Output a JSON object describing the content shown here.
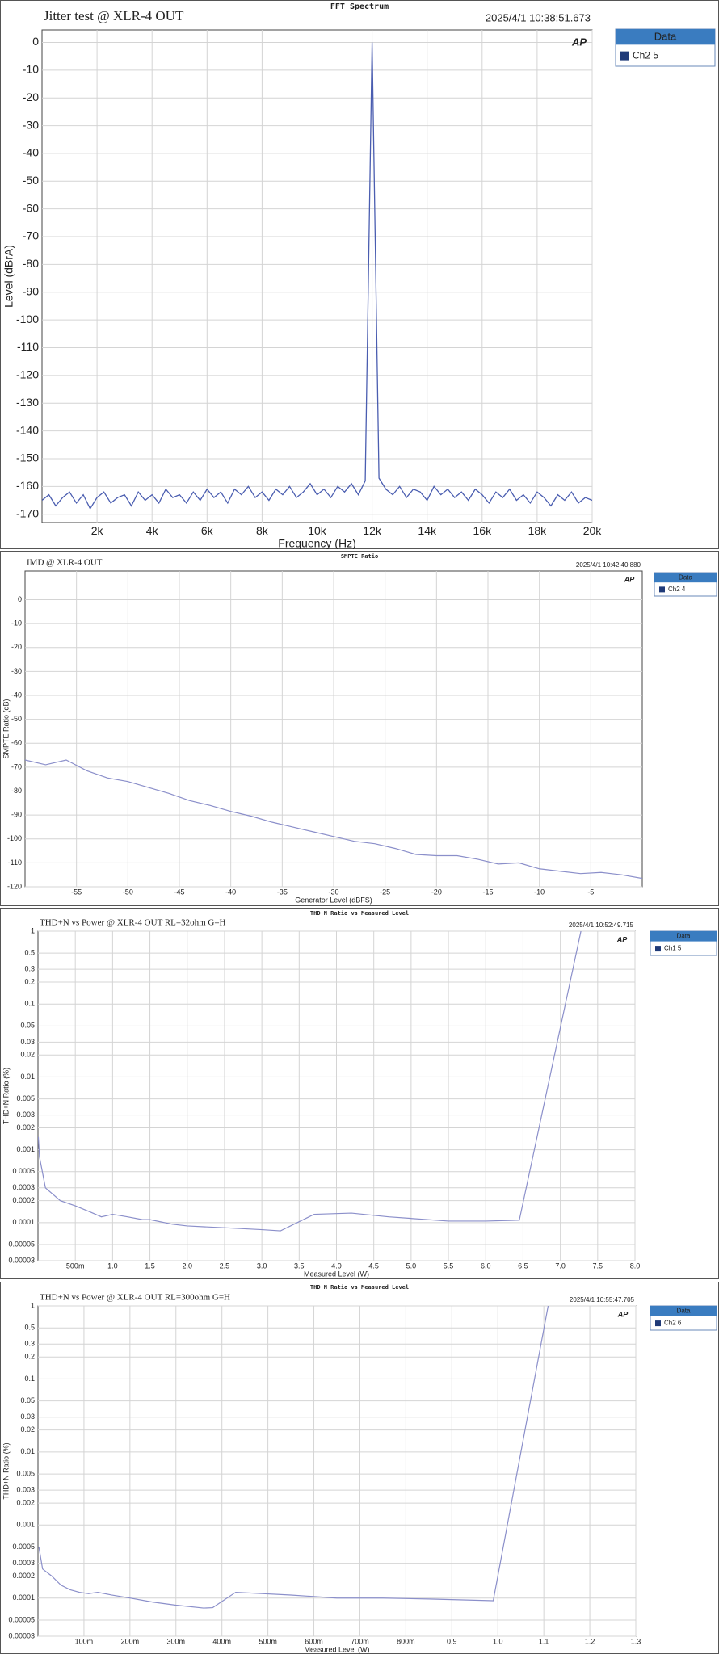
{
  "chart_data": [
    {
      "type": "line",
      "title": "FFT Spectrum",
      "annotation": "Jitter test @ XLR-4  OUT",
      "timestamp": "2025/4/1 10:38:51.673",
      "xlabel": "Frequency (Hz)",
      "ylabel": "Level (dBrA)",
      "legend_title": "Data",
      "grid": true,
      "legend": "right",
      "xlim": [
        0,
        20000
      ],
      "ylim": [
        -173,
        4.5
      ],
      "xticks": [
        {
          "value": 2000,
          "label": "2k"
        },
        {
          "value": 4000,
          "label": "4k"
        },
        {
          "value": 6000,
          "label": "6k"
        },
        {
          "value": 8000,
          "label": "8k"
        },
        {
          "value": 10000,
          "label": "10k"
        },
        {
          "value": 12000,
          "label": "12k"
        },
        {
          "value": 14000,
          "label": "14k"
        },
        {
          "value": 16000,
          "label": "16k"
        },
        {
          "value": 18000,
          "label": "18k"
        },
        {
          "value": 20000,
          "label": "20k"
        }
      ],
      "yticks": [
        0,
        -10,
        -20,
        -30,
        -40,
        -50,
        -60,
        -70,
        -80,
        -90,
        -100,
        -110,
        -120,
        -130,
        -140,
        -150,
        -160,
        -170
      ],
      "x": [
        0,
        250,
        500,
        750,
        1000,
        1250,
        1500,
        1750,
        2000,
        2250,
        2500,
        2750,
        3000,
        3250,
        3500,
        3750,
        4000,
        4250,
        4500,
        4750,
        5000,
        5250,
        5500,
        5750,
        6000,
        6250,
        6500,
        6750,
        7000,
        7250,
        7500,
        7750,
        8000,
        8250,
        8500,
        8750,
        9000,
        9250,
        9500,
        9750,
        10000,
        10250,
        10500,
        10750,
        11000,
        11250,
        11500,
        11750,
        12000,
        12250,
        12500,
        12750,
        13000,
        13250,
        13500,
        13750,
        14000,
        14250,
        14500,
        14750,
        15000,
        15250,
        15500,
        15750,
        16000,
        16250,
        16500,
        16750,
        17000,
        17250,
        17500,
        17750,
        18000,
        18250,
        18500,
        18750,
        19000,
        19250,
        19500,
        19750,
        20000
      ],
      "series": [
        {
          "name": "Ch2 5",
          "color": "#4a5db0",
          "values": [
            -165,
            -163,
            -167,
            -164,
            -162,
            -166,
            -163,
            -168,
            -164,
            -162,
            -166,
            -164,
            -163,
            -167,
            -162,
            -165,
            -163,
            -166,
            -161,
            -164,
            -163,
            -166,
            -162,
            -165,
            -161,
            -164,
            -162,
            -166,
            -161,
            -163,
            -160,
            -164,
            -162,
            -165,
            -161,
            -163,
            -160,
            -164,
            -162,
            -159,
            -163,
            -161,
            -164,
            -160,
            -162,
            -159,
            -163,
            -158,
            0,
            -157,
            -161,
            -163,
            -160,
            -164,
            -161,
            -162,
            -165,
            -160,
            -163,
            -161,
            -164,
            -162,
            -165,
            -161,
            -163,
            -166,
            -162,
            -164,
            -161,
            -165,
            -163,
            -166,
            -162,
            -164,
            -167,
            -163,
            -165,
            -162,
            -166,
            -164,
            -165
          ]
        }
      ]
    },
    {
      "type": "line",
      "title": "SMPTE Ratio",
      "annotation": "IMD @ XLR-4 OUT",
      "timestamp": "2025/4/1 10:42:40.880",
      "xlabel": "Generator Level (dBFS)",
      "ylabel": "SMPTE Ratio (dB)",
      "legend_title": "Data",
      "grid": true,
      "legend": "right",
      "xlim": [
        -60,
        0
      ],
      "ylim": [
        -120,
        12
      ],
      "xticks": [
        -55,
        -50,
        -45,
        -40,
        -35,
        -30,
        -25,
        -20,
        -15,
        -10,
        -5
      ],
      "yticks": [
        0,
        -10,
        -20,
        -30,
        -40,
        -50,
        -60,
        -70,
        -80,
        -90,
        -100,
        -110,
        -120
      ],
      "x": [
        -60,
        -58,
        -56,
        -54,
        -52,
        -50,
        -48,
        -46,
        -44,
        -42,
        -40,
        -38,
        -36,
        -34,
        -32,
        -30,
        -28,
        -26,
        -24,
        -22,
        -20,
        -18,
        -16,
        -14,
        -12,
        -10,
        -8,
        -6,
        -4,
        -2,
        0
      ],
      "series": [
        {
          "name": "Ch2 4",
          "color": "#8b8fca",
          "values": [
            -67,
            -69,
            -67,
            -71.5,
            -74.5,
            -76,
            -78.5,
            -81,
            -84,
            -86,
            -88.5,
            -90.5,
            -93,
            -95,
            -97,
            -99,
            -101,
            -102,
            -104,
            -106.5,
            -107,
            -107,
            -108.5,
            -110.5,
            -110,
            -112.5,
            -113.5,
            -114.5,
            -114,
            -115,
            -116.5
          ]
        }
      ]
    },
    {
      "type": "line",
      "title": "THD+N Ratio vs Measured Level",
      "annotation": "THD+N vs Power @ XLR-4 OUT  RL=32ohm  G=H",
      "timestamp": "2025/4/1 10:52:49.715",
      "xlabel": "Measured Level (W)",
      "ylabel": "THD+N Ratio (%)",
      "legend_title": "Data",
      "grid": true,
      "legend": "right",
      "yscale": "log",
      "xlim": [
        0,
        8
      ],
      "ylim": [
        3e-05,
        1
      ],
      "xticks": [
        {
          "value": 0.5,
          "label": "500m"
        },
        {
          "value": 1,
          "label": "1.0"
        },
        1.5,
        {
          "value": 2,
          "label": "2.0"
        },
        2.5,
        {
          "value": 3,
          "label": "3.0"
        },
        3.5,
        {
          "value": 4,
          "label": "4.0"
        },
        4.5,
        {
          "value": 5,
          "label": "5.0"
        },
        5.5,
        {
          "value": 6,
          "label": "6.0"
        },
        6.5,
        {
          "value": 7,
          "label": "7.0"
        },
        7.5,
        {
          "value": 8,
          "label": "8.0"
        }
      ],
      "yticks": [
        1,
        0.5,
        0.3,
        0.2,
        0.1,
        0.05,
        0.03,
        0.02,
        0.01,
        0.005,
        0.003,
        0.002,
        0.001,
        0.0005,
        0.0003,
        0.0002,
        0.0001,
        5e-05,
        3e-05
      ],
      "x": [
        0.005,
        0.02,
        0.1,
        0.3,
        0.5,
        0.7,
        0.85,
        1.0,
        1.2,
        1.4,
        1.5,
        1.8,
        2.0,
        2.5,
        3.0,
        3.25,
        3.7,
        4.2,
        4.7,
        5.5,
        6.0,
        6.45,
        7.28
      ],
      "series": [
        {
          "name": "Ch1 5",
          "color": "#8b8fca",
          "values": [
            0.0015,
            0.0008,
            0.0003,
            0.0002,
            0.00017,
            0.00014,
            0.00012,
            0.00013,
            0.00012,
            0.00011,
            0.00011,
            9.5e-05,
            9e-05,
            8.5e-05,
            8e-05,
            7.7e-05,
            0.00013,
            0.000135,
            0.00012,
            0.000105,
            0.000105,
            0.000108,
            1.05
          ]
        }
      ]
    },
    {
      "type": "line",
      "title": "THD+N Ratio vs Measured Level",
      "annotation": "THD+N  vs Power @ XLR-4 OUT  RL=300ohm  G=H",
      "timestamp": "2025/4/1 10:55:47.705",
      "xlabel": "Measured Level (W)",
      "ylabel": "THD+N Ratio (%)",
      "legend_title": "Data",
      "grid": true,
      "legend": "right",
      "yscale": "log",
      "xlim": [
        0,
        1.3
      ],
      "ylim": [
        3e-05,
        1
      ],
      "xticks": [
        {
          "value": 0.1,
          "label": "100m"
        },
        {
          "value": 0.2,
          "label": "200m"
        },
        {
          "value": 0.3,
          "label": "300m"
        },
        {
          "value": 0.4,
          "label": "400m"
        },
        {
          "value": 0.5,
          "label": "500m"
        },
        {
          "value": 0.6,
          "label": "600m"
        },
        {
          "value": 0.7,
          "label": "700m"
        },
        {
          "value": 0.8,
          "label": "800m"
        },
        0.9,
        {
          "value": 1,
          "label": "1.0"
        },
        1.1,
        1.2,
        1.3
      ],
      "yticks": [
        1,
        0.5,
        0.3,
        0.2,
        0.1,
        0.05,
        0.03,
        0.02,
        0.01,
        0.005,
        0.003,
        0.002,
        0.001,
        0.0005,
        0.0003,
        0.0002,
        0.0001,
        5e-05,
        3e-05
      ],
      "x": [
        0.002,
        0.01,
        0.03,
        0.05,
        0.07,
        0.09,
        0.11,
        0.13,
        0.16,
        0.2,
        0.25,
        0.3,
        0.36,
        0.38,
        0.43,
        0.55,
        0.65,
        0.75,
        0.85,
        0.99,
        1.11
      ],
      "series": [
        {
          "name": "Ch2 6",
          "color": "#8b8fca",
          "values": [
            0.0005,
            0.00025,
            0.0002,
            0.00015,
            0.00013,
            0.00012,
            0.000115,
            0.00012,
            0.00011,
            0.0001,
            8.8e-05,
            8e-05,
            7.3e-05,
            7.4e-05,
            0.00012,
            0.00011,
            0.0001,
            0.0001,
            9.7e-05,
            9.2e-05,
            1.05
          ]
        }
      ]
    }
  ]
}
